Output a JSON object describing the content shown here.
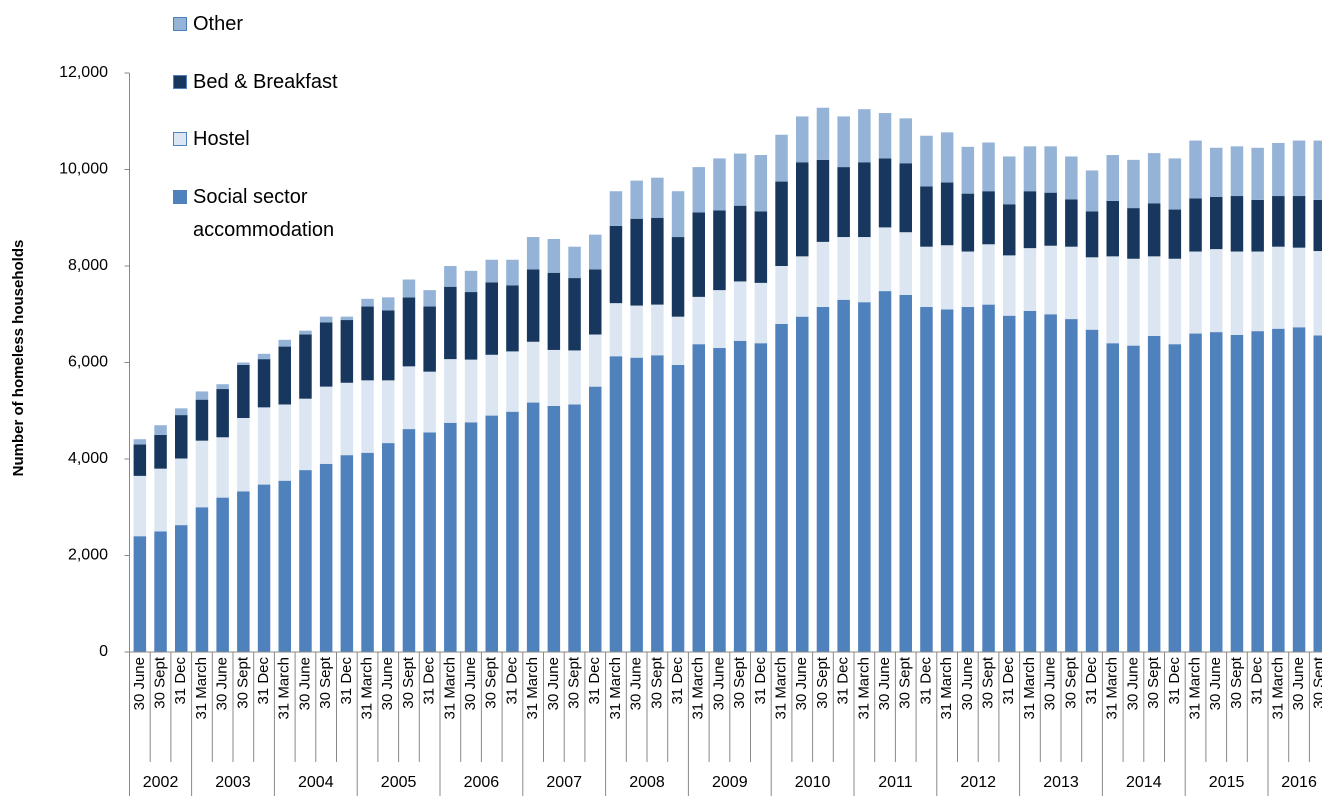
{
  "chart_data": {
    "type": "stacked_bar",
    "y_label": "Number of homeless households",
    "categories": [
      "30 June",
      "30 Sept",
      "31 Dec",
      "31 March",
      "30 June",
      "30 Sept",
      "31 Dec",
      "31 March",
      "30 June",
      "30 Sept",
      "31 Dec",
      "31 March",
      "30 June",
      "30 Sept",
      "31 Dec",
      "31 March",
      "30 June",
      "30 Sept",
      "31 Dec",
      "31 March",
      "30 June",
      "30 Sept",
      "31 Dec",
      "31 March",
      "30 June",
      "30 Sept",
      "31 Dec",
      "31 March",
      "30 June",
      "30 Sept",
      "31 Dec",
      "31 March",
      "30 June",
      "30 Sept",
      "31 Dec",
      "31 March",
      "30 June",
      "30 Sept",
      "31 Dec",
      "31 March",
      "30 June",
      "30 Sept",
      "31 Dec",
      "31 March",
      "30 June",
      "30 Sept",
      "31 Dec",
      "31 March",
      "30 June",
      "30 Sept",
      "31 Dec",
      "31 March",
      "30 June",
      "30 Sept",
      "31 Dec",
      "31 March",
      "30 June",
      "30 Sept"
    ],
    "years": [
      "2002",
      "2003",
      "2004",
      "2005",
      "2006",
      "2007",
      "2008",
      "2009",
      "2010",
      "2011",
      "2012",
      "2013",
      "2014",
      "2015",
      "2016"
    ],
    "series": [
      {
        "name": "Social sector accommodation",
        "color": "#4f81bd",
        "values": [
          2400,
          2500,
          2630,
          3000,
          3200,
          3330,
          3470,
          3550,
          3770,
          3900,
          4080,
          4130,
          4330,
          4620,
          4550,
          4750,
          4760,
          4900,
          4980,
          5170,
          5100,
          5130,
          5500,
          6130,
          6100,
          6150,
          5950,
          6380,
          6300,
          6450,
          6400,
          6800,
          6950,
          7150,
          7300,
          7250,
          7480,
          7400,
          7150,
          7100,
          7150,
          7200,
          6970,
          7070,
          7000,
          6900,
          6680,
          6400,
          6350,
          6550,
          6380,
          6600,
          6630,
          6570,
          6650,
          6700,
          6730,
          6560
        ]
      },
      {
        "name": "Hostel",
        "color": "#dce6f2",
        "values": [
          1250,
          1300,
          1380,
          1380,
          1250,
          1520,
          1600,
          1580,
          1480,
          1600,
          1500,
          1500,
          1300,
          1300,
          1260,
          1320,
          1300,
          1260,
          1250,
          1260,
          1160,
          1120,
          1080,
          1100,
          1080,
          1050,
          1000,
          980,
          1200,
          1230,
          1250,
          1200,
          1250,
          1350,
          1300,
          1350,
          1320,
          1300,
          1250,
          1330,
          1150,
          1250,
          1250,
          1300,
          1420,
          1500,
          1500,
          1800,
          1800,
          1650,
          1770,
          1700,
          1720,
          1730,
          1650,
          1700,
          1650,
          1750
        ]
      },
      {
        "name": "Bed & Breakfast",
        "color": "#17375e",
        "values": [
          650,
          700,
          900,
          850,
          1000,
          1100,
          1000,
          1200,
          1330,
          1330,
          1300,
          1530,
          1450,
          1430,
          1350,
          1500,
          1400,
          1500,
          1370,
          1500,
          1600,
          1500,
          1350,
          1600,
          1800,
          1800,
          1650,
          1750,
          1650,
          1570,
          1480,
          1750,
          1950,
          1700,
          1450,
          1550,
          1430,
          1430,
          1250,
          1300,
          1200,
          1100,
          1060,
          1180,
          1100,
          980,
          950,
          1150,
          1050,
          1100,
          1020,
          1100,
          1080,
          1150,
          1070,
          1050,
          1070,
          1060
        ]
      },
      {
        "name": "Other",
        "color": "#95b3d7",
        "values": [
          110,
          200,
          140,
          170,
          100,
          50,
          110,
          140,
          80,
          120,
          70,
          160,
          270,
          370,
          340,
          430,
          440,
          470,
          530,
          670,
          700,
          650,
          720,
          720,
          790,
          830,
          950,
          940,
          1080,
          1080,
          1170,
          970,
          950,
          1080,
          1050,
          1100,
          940,
          930,
          1050,
          1040,
          970,
          1010,
          990,
          930,
          960,
          890,
          850,
          950,
          1000,
          1040,
          1060,
          1200,
          1020,
          1030,
          1080,
          1100,
          1150,
          1230
        ]
      }
    ],
    "ylim": [
      0,
      12000
    ],
    "yticks": [
      0,
      {
        "value": 2000,
        "label": "2,000"
      },
      {
        "value": 4000,
        "label": "4,000"
      },
      {
        "value": 6000,
        "label": "6,000"
      },
      {
        "value": 8000,
        "label": "8,000"
      },
      {
        "value": 10000,
        "label": "10,000"
      },
      {
        "value": 12000,
        "label": "12,000"
      }
    ],
    "grid": false
  }
}
